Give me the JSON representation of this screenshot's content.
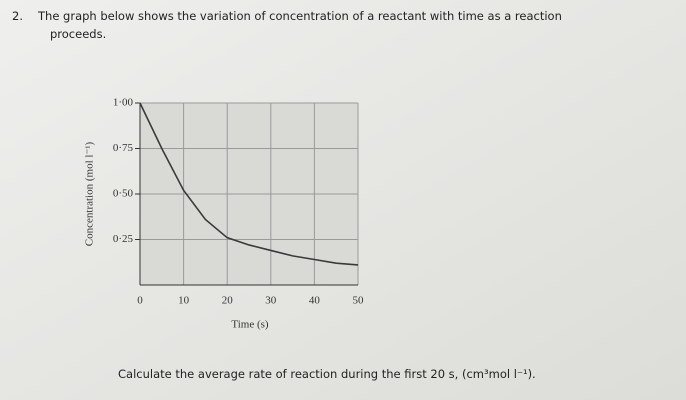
{
  "question": {
    "number": "2.",
    "text_line1": "The graph below shows the variation of concentration of a reactant with time as a reaction",
    "text_line2": "proceeds."
  },
  "chart_data": {
    "type": "line",
    "x_label": "Time (s)",
    "y_label": "Concentration (mol l⁻¹)",
    "x": [
      0,
      5,
      10,
      15,
      20,
      25,
      30,
      35,
      40,
      45,
      50
    ],
    "series": [
      {
        "name": "Concentration",
        "color": "#3a3a3a",
        "values": [
          1.0,
          0.75,
          0.52,
          0.36,
          0.26,
          0.22,
          0.19,
          0.16,
          0.14,
          0.12,
          0.11
        ]
      }
    ],
    "xlim": [
      0,
      50
    ],
    "xticks": [
      0,
      10,
      20,
      30,
      40,
      50
    ],
    "ylim": [
      0,
      1
    ],
    "yticks": [
      {
        "value": 0.25,
        "label": "0·25"
      },
      {
        "value": 0.5,
        "label": "0·50"
      },
      {
        "value": 0.75,
        "label": "0·75"
      },
      {
        "value": 1,
        "label": "1·00"
      }
    ],
    "grid": true
  },
  "prompt": "Calculate the average rate of reaction during the first 20 s, (cm³mol l⁻¹)."
}
